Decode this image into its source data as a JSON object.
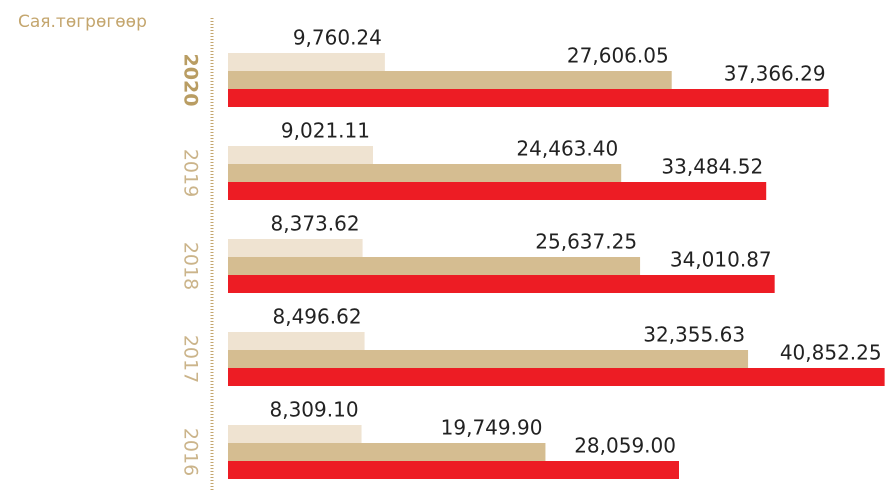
{
  "chart_data": {
    "type": "bar",
    "orientation": "horizontal",
    "axis_title": "Сая.төгрөгөөр",
    "categories": [
      "2020",
      "2019",
      "2018",
      "2017",
      "2016"
    ],
    "xlim": [
      0,
      41000
    ],
    "series": [
      {
        "color": "#efe3d1",
        "values": [
          9760.24,
          9021.11,
          8373.62,
          8496.62,
          8309.1
        ],
        "value_labels": [
          "9,760.24",
          "9,021.11",
          "8,373.62",
          "8,496.62",
          "8,309.10"
        ]
      },
      {
        "color": "#d5bd91",
        "values": [
          27606.05,
          24463.4,
          25637.25,
          32355.63,
          19749.9
        ],
        "value_labels": [
          "27,606.05",
          "24,463.40",
          "25,637.25",
          "32,355.63",
          "19,749.90"
        ]
      },
      {
        "color": "#ed1c24",
        "values": [
          37366.29,
          33484.52,
          34010.87,
          40852.25,
          28059.0
        ],
        "value_labels": [
          "37,366.29",
          "33,484.52",
          "34,010.87",
          "40,852.25",
          "28,059.00"
        ]
      }
    ]
  }
}
